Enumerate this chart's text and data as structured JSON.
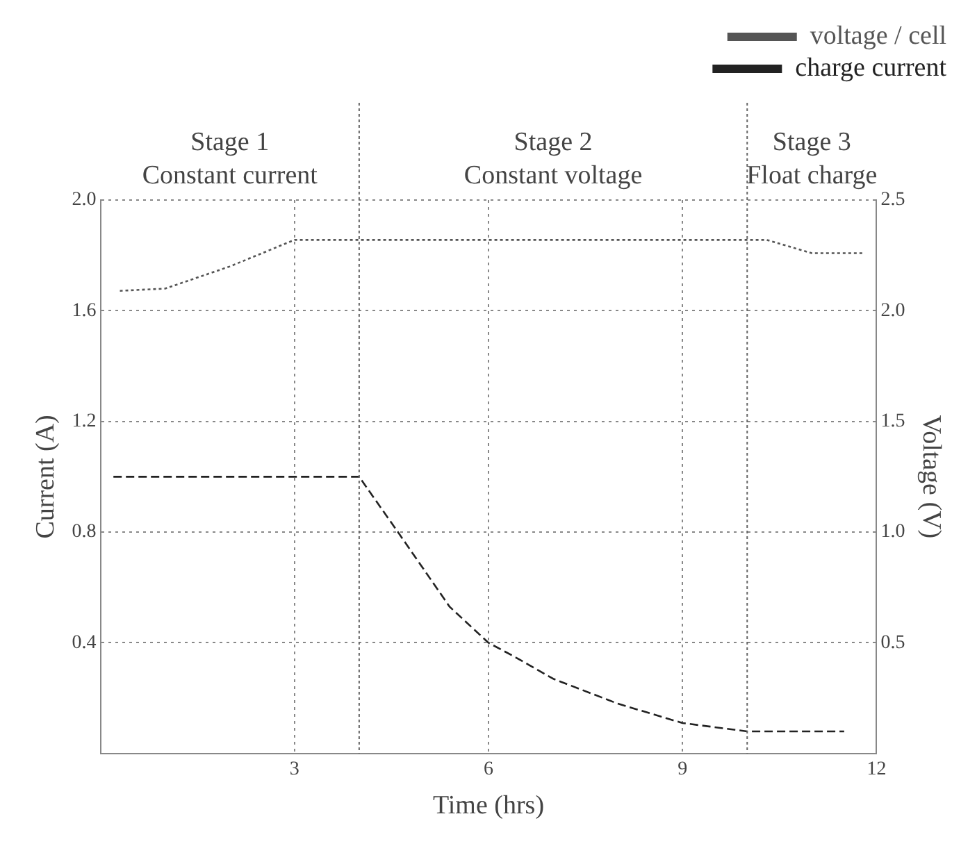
{
  "chart_data": {
    "type": "line",
    "xlabel": "Time (hrs)",
    "ylabel": "Current (A)",
    "y2label": "Voltage (V)",
    "x": [
      0.3,
      1,
      2,
      3,
      10.3,
      11,
      11.8
    ],
    "series": [
      {
        "name": "voltage / cell",
        "color": "#555555",
        "axis": "y2",
        "line_style": "dotted",
        "values": [
          2.09,
          2.1,
          2.2,
          2.32,
          2.32,
          2.26,
          2.26
        ]
      },
      {
        "name": "charge current",
        "color": "#222222",
        "axis": "y",
        "line_style": "dashed",
        "x": [
          0.2,
          4,
          4.6,
          5.4,
          6,
          6.4,
          7,
          8,
          9,
          10,
          11.5
        ],
        "values": [
          1.0,
          1.0,
          0.8,
          0.53,
          0.4,
          0.35,
          0.27,
          0.18,
          0.11,
          0.08,
          0.08
        ]
      }
    ],
    "xlim": [
      0,
      12
    ],
    "xticks": [
      3,
      6,
      9,
      12
    ],
    "ylim": [
      0,
      2.0
    ],
    "yticks": [
      {
        "value": 0,
        "label": null
      },
      0.4,
      0.8,
      1.2,
      1.6,
      {
        "value": 2.0,
        "label": "2.0"
      }
    ],
    "y2lim": [
      0,
      2.5
    ],
    "y2ticks": [
      {
        "value": 0,
        "label": null
      },
      0.5,
      {
        "value": 1.0,
        "label": "1.0"
      },
      1.5,
      {
        "value": 2.0,
        "label": "2.0"
      },
      2.5
    ],
    "ref_lines": [
      {
        "axis": "x",
        "value": 4,
        "line_style": "dotted",
        "color": "#666666"
      },
      {
        "axis": "x",
        "value": 10,
        "line_style": "dotted",
        "color": "#666666"
      }
    ],
    "annotations": [
      "Stage 1\nConstant current",
      "Stage 2\nConstant voltage",
      "Stage 3\nFloat charge"
    ],
    "grid": true,
    "legend": "top right",
    "marker": "none"
  }
}
